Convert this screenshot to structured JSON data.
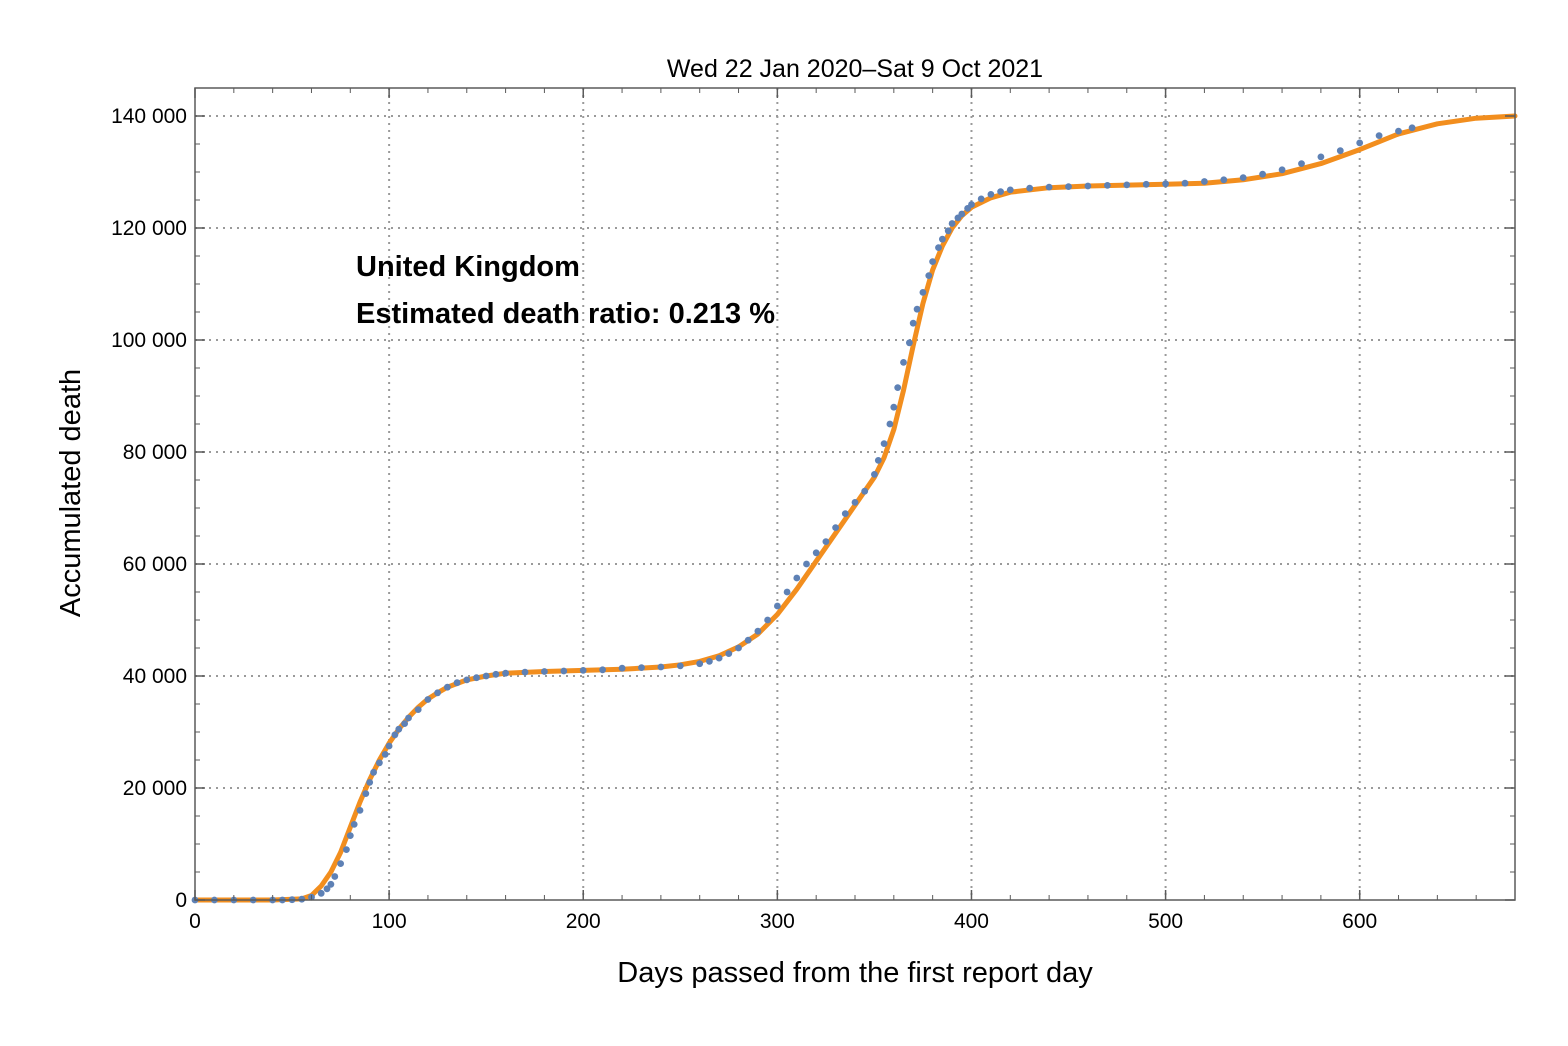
{
  "chart_data": {
    "type": "scatter",
    "title": "Wed 22 Jan 2020–Sat 9 Oct 2021",
    "xlabel": "Days passed from the first report day",
    "ylabel": "Accumulated death",
    "xlim": [
      0,
      680
    ],
    "ylim": [
      0,
      145000
    ],
    "xticks": [
      0,
      100,
      200,
      300,
      400,
      500,
      600
    ],
    "xtick_labels": [
      "0",
      "100",
      "200",
      "300",
      "400",
      "500",
      "600"
    ],
    "yticks": [
      0,
      20000,
      40000,
      60000,
      80000,
      100000,
      120000,
      140000
    ],
    "ytick_labels": [
      "0",
      "20 000",
      "40 000",
      "60 000",
      "80 000",
      "100 000",
      "120 000",
      "140 000"
    ],
    "grid": true,
    "annotations": [
      "United Kingdom",
      "Estimated death ratio: 0.213 %"
    ],
    "series": [
      {
        "kind": "fit-line",
        "color": "#f28e1e",
        "x": [
          0,
          40,
          55,
          60,
          65,
          70,
          75,
          80,
          85,
          90,
          95,
          100,
          105,
          110,
          115,
          120,
          125,
          130,
          140,
          150,
          160,
          180,
          200,
          220,
          240,
          250,
          260,
          270,
          280,
          290,
          300,
          310,
          320,
          330,
          340,
          350,
          355,
          360,
          365,
          370,
          375,
          380,
          385,
          390,
          395,
          400,
          410,
          420,
          440,
          460,
          500,
          520,
          540,
          560,
          580,
          600,
          620,
          640,
          660,
          680
        ],
        "y": [
          0,
          0,
          200,
          800,
          2500,
          5000,
          8500,
          13000,
          17500,
          21500,
          25000,
          28000,
          30500,
          32600,
          34400,
          35900,
          37000,
          38000,
          39300,
          40000,
          40500,
          40800,
          41000,
          41200,
          41600,
          42000,
          42600,
          43600,
          45200,
          47500,
          51000,
          55500,
          60500,
          65500,
          70500,
          75500,
          79000,
          84000,
          91000,
          99000,
          106500,
          112500,
          116800,
          120000,
          122200,
          123700,
          125400,
          126400,
          127200,
          127500,
          127800,
          128000,
          128600,
          129700,
          131500,
          134000,
          136800,
          138600,
          139600,
          140000
        ]
      },
      {
        "kind": "data-points",
        "color": "#5e81b5",
        "x": [
          0,
          10,
          20,
          30,
          40,
          45,
          50,
          55,
          60,
          65,
          68,
          70,
          72,
          75,
          78,
          80,
          82,
          85,
          88,
          90,
          92,
          95,
          98,
          100,
          103,
          105,
          108,
          110,
          115,
          120,
          125,
          130,
          135,
          140,
          145,
          150,
          155,
          160,
          170,
          180,
          190,
          200,
          210,
          220,
          230,
          240,
          250,
          260,
          265,
          270,
          275,
          280,
          285,
          290,
          295,
          300,
          305,
          310,
          315,
          320,
          325,
          330,
          335,
          340,
          345,
          350,
          352,
          355,
          358,
          360,
          362,
          365,
          368,
          370,
          372,
          375,
          378,
          380,
          383,
          385,
          388,
          390,
          393,
          395,
          398,
          400,
          405,
          410,
          415,
          420,
          430,
          440,
          450,
          460,
          470,
          480,
          490,
          500,
          510,
          520,
          530,
          540,
          550,
          560,
          570,
          580,
          590,
          600,
          610,
          620,
          627
        ],
        "y": [
          0,
          0,
          0,
          0,
          0,
          0,
          50,
          150,
          500,
          1200,
          2000,
          2800,
          4200,
          6500,
          9000,
          11500,
          13500,
          16000,
          19000,
          21000,
          22800,
          24500,
          26000,
          27500,
          29500,
          30500,
          31500,
          32500,
          34000,
          35800,
          37000,
          38000,
          38800,
          39300,
          39700,
          40000,
          40300,
          40500,
          40700,
          40800,
          40900,
          41000,
          41100,
          41400,
          41500,
          41600,
          41800,
          42200,
          42600,
          43200,
          44000,
          45000,
          46400,
          48000,
          50000,
          52500,
          55000,
          57500,
          60000,
          62000,
          64000,
          66500,
          69000,
          71000,
          73000,
          76000,
          78500,
          81500,
          85000,
          88000,
          91500,
          96000,
          99500,
          103000,
          105500,
          108500,
          111500,
          114000,
          116500,
          118000,
          119500,
          120800,
          121800,
          122500,
          123500,
          124200,
          125200,
          126000,
          126500,
          126800,
          127100,
          127300,
          127400,
          127500,
          127600,
          127700,
          127800,
          127900,
          128000,
          128300,
          128600,
          129000,
          129600,
          130400,
          131500,
          132700,
          133800,
          135200,
          136500,
          137300,
          137900
        ]
      }
    ]
  }
}
